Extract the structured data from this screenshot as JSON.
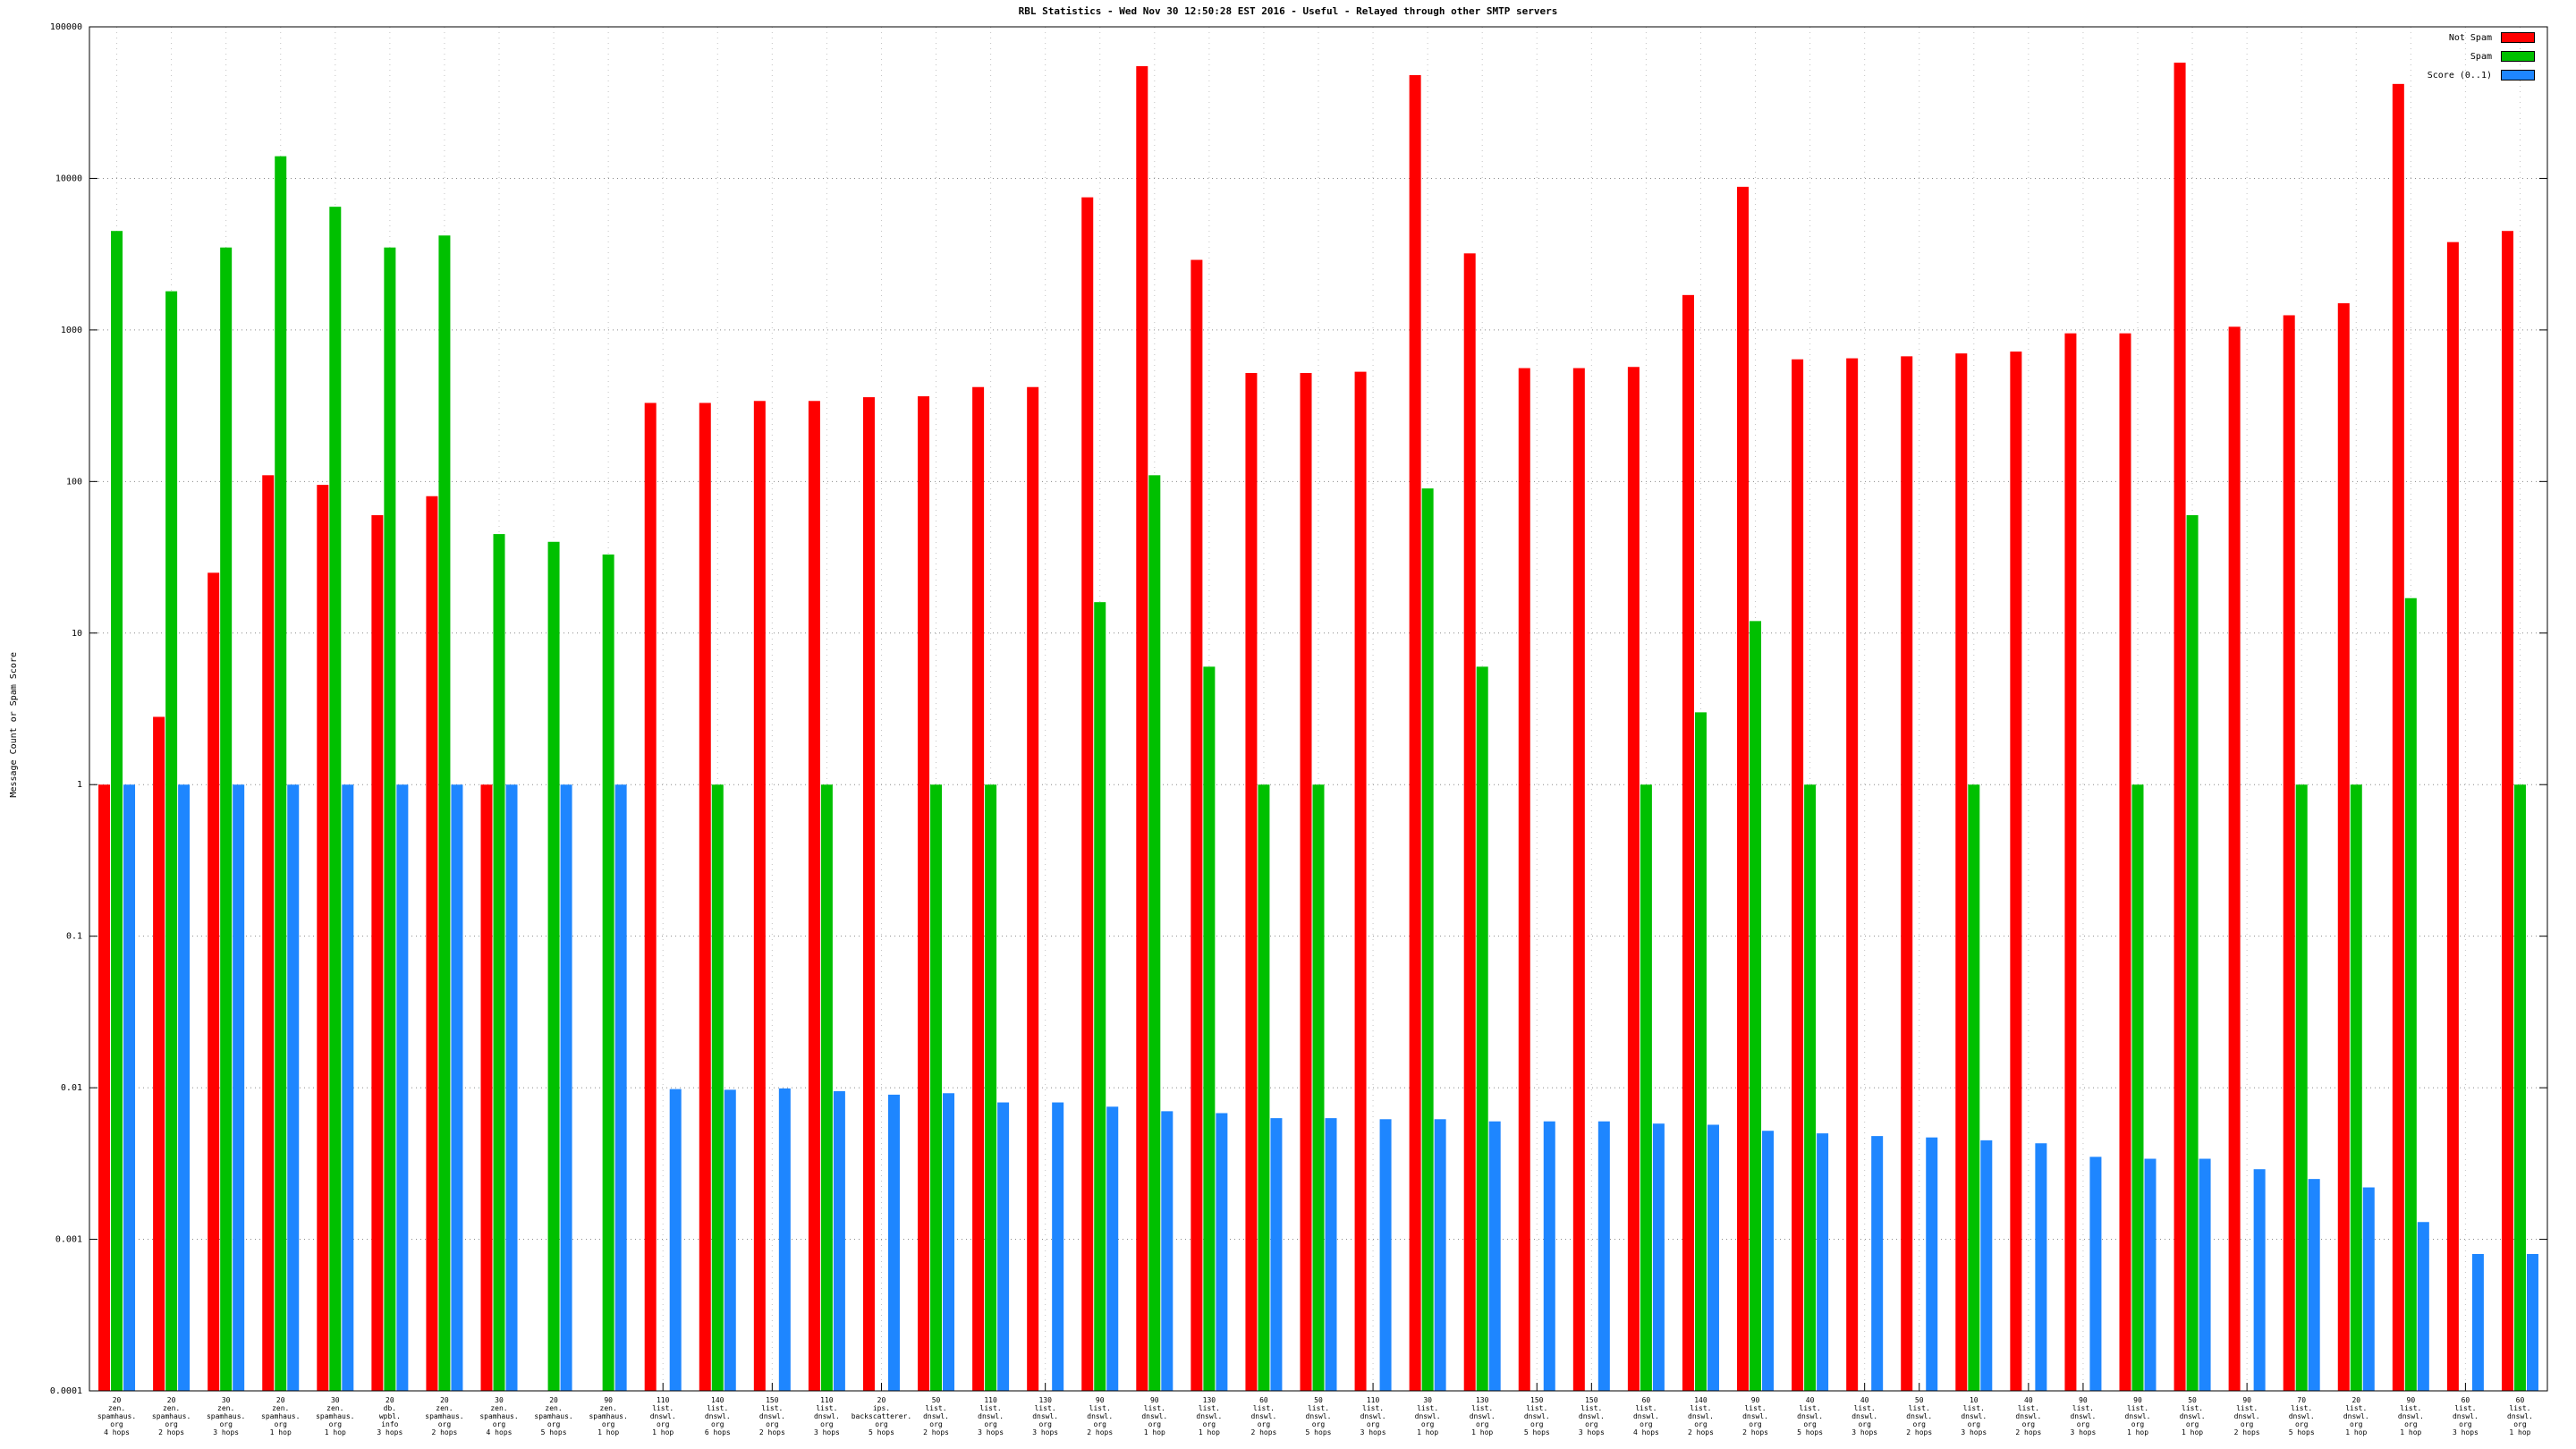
{
  "chart_data": {
    "type": "bar",
    "title": "RBL Statistics - Wed Nov 30 12:50:28 EST 2016 - Useful - Relayed through other SMTP servers",
    "ylabel": "Message Count or Spam Score",
    "xlabel": "",
    "y_scale": "log10",
    "ylim": [
      0.0001,
      100000
    ],
    "y_ticks": [
      "0.0001",
      "0.001",
      "0.01",
      "0.1",
      "1",
      "10",
      "100",
      "1000",
      "10000",
      "100000"
    ],
    "grid": "dotted",
    "legend_position": "top-right",
    "series": [
      {
        "name": "Not Spam",
        "key": "not-spam",
        "color": "#ff0000",
        "values": [
          1,
          2.8,
          25,
          110,
          95,
          60,
          80,
          1,
          null,
          null,
          330,
          330,
          340,
          340,
          360,
          365,
          420,
          420,
          7500,
          55000,
          2900,
          520,
          520,
          530,
          48000,
          3200,
          560,
          560,
          570,
          1700,
          8800,
          640,
          650,
          670,
          700,
          720,
          950,
          950,
          58000,
          1050,
          1250,
          1500,
          42000,
          3800,
          4500
        ]
      },
      {
        "name": "Spam",
        "key": "spam",
        "color": "#00c000",
        "values": [
          4500,
          1800,
          3500,
          14000,
          6500,
          3500,
          4200,
          45,
          40,
          33,
          null,
          1,
          null,
          1,
          null,
          1,
          1,
          null,
          16,
          110,
          6,
          1,
          1,
          null,
          90,
          6,
          null,
          null,
          1,
          3,
          12,
          1,
          null,
          null,
          1,
          null,
          null,
          1,
          60,
          null,
          1,
          1,
          17,
          null,
          1
        ]
      },
      {
        "name": "Score (0..1)",
        "key": "score",
        "color": "#1e86ff",
        "values": [
          1,
          1,
          1,
          1,
          1,
          1,
          1,
          1,
          1,
          1,
          0.0098,
          0.0097,
          0.0099,
          0.0095,
          0.009,
          0.0092,
          0.008,
          0.008,
          0.0075,
          0.007,
          0.0068,
          0.0063,
          0.0063,
          0.0062,
          0.0062,
          0.006,
          0.006,
          0.006,
          0.0058,
          0.0057,
          0.0052,
          0.005,
          0.0048,
          0.0047,
          0.0045,
          0.0043,
          0.0035,
          0.0034,
          0.0034,
          0.0029,
          0.0025,
          0.0022,
          0.0013,
          0.0008,
          0.0008
        ]
      }
    ],
    "categories": [
      [
        "20",
        "zen.",
        "spamhaus.",
        "org",
        "4 hops"
      ],
      [
        "20",
        "zen.",
        "spamhaus.",
        "org",
        "2 hops"
      ],
      [
        "30",
        "zen.",
        "spamhaus.",
        "org",
        "3 hops"
      ],
      [
        "20",
        "zen.",
        "spamhaus.",
        "org",
        "1 hop"
      ],
      [
        "30",
        "zen.",
        "spamhaus.",
        "org",
        "1 hop"
      ],
      [
        "20",
        "db.",
        "wpbl.",
        "info",
        "3 hops"
      ],
      [
        "20",
        "zen.",
        "spamhaus.",
        "org",
        "2 hops"
      ],
      [
        "30",
        "zen.",
        "spamhaus.",
        "org",
        "4 hops"
      ],
      [
        "20",
        "zen.",
        "spamhaus.",
        "org",
        "5 hops"
      ],
      [
        "90",
        "zen.",
        "spamhaus.",
        "org",
        "1 hop"
      ],
      [
        "110",
        "list.",
        "dnswl.",
        "org",
        "1 hop"
      ],
      [
        "140",
        "list.",
        "dnswl.",
        "org",
        "6 hops"
      ],
      [
        "150",
        "list.",
        "dnswl.",
        "org",
        "2 hops"
      ],
      [
        "110",
        "list.",
        "dnswl.",
        "org",
        "3 hops"
      ],
      [
        "20",
        "ips.",
        "backscatterer.",
        "org",
        "5 hops"
      ],
      [
        "50",
        "list.",
        "dnswl.",
        "org",
        "2 hops"
      ],
      [
        "110",
        "list.",
        "dnswl.",
        "org",
        "3 hops"
      ],
      [
        "130",
        "list.",
        "dnswl.",
        "org",
        "3 hops"
      ],
      [
        "90",
        "list.",
        "dnswl.",
        "org",
        "2 hops"
      ],
      [
        "90",
        "list.",
        "dnswl.",
        "org",
        "1 hop"
      ],
      [
        "130",
        "list.",
        "dnswl.",
        "org",
        "1 hop"
      ],
      [
        "60",
        "list.",
        "dnswl.",
        "org",
        "2 hops"
      ],
      [
        "50",
        "list.",
        "dnswl.",
        "org",
        "5 hops"
      ],
      [
        "110",
        "list.",
        "dnswl.",
        "org",
        "3 hops"
      ],
      [
        "30",
        "list.",
        "dnswl.",
        "org",
        "1 hop"
      ],
      [
        "130",
        "list.",
        "dnswl.",
        "org",
        "1 hop"
      ],
      [
        "150",
        "list.",
        "dnswl.",
        "org",
        "5 hops"
      ],
      [
        "150",
        "list.",
        "dnswl.",
        "org",
        "3 hops"
      ],
      [
        "60",
        "list.",
        "dnswl.",
        "org",
        "4 hops"
      ],
      [
        "140",
        "list.",
        "dnswl.",
        "org",
        "2 hops"
      ],
      [
        "90",
        "list.",
        "dnswl.",
        "org",
        "2 hops"
      ],
      [
        "40",
        "list.",
        "dnswl.",
        "org",
        "5 hops"
      ],
      [
        "40",
        "list.",
        "dnswl.",
        "org",
        "3 hops"
      ],
      [
        "50",
        "list.",
        "dnswl.",
        "org",
        "2 hops"
      ],
      [
        "10",
        "list.",
        "dnswl.",
        "org",
        "3 hops"
      ],
      [
        "40",
        "list.",
        "dnswl.",
        "org",
        "2 hops"
      ],
      [
        "90",
        "list.",
        "dnswl.",
        "org",
        "3 hops"
      ],
      [
        "90",
        "list.",
        "dnswl.",
        "org",
        "1 hop"
      ],
      [
        "50",
        "list.",
        "dnswl.",
        "org",
        "1 hop"
      ],
      [
        "90",
        "list.",
        "dnswl.",
        "org",
        "2 hops"
      ],
      [
        "70",
        "list.",
        "dnswl.",
        "org",
        "5 hops"
      ],
      [
        "20",
        "list.",
        "dnswl.",
        "org",
        "1 hop"
      ],
      [
        "90",
        "list.",
        "dnswl.",
        "org",
        "1 hop"
      ],
      [
        "60",
        "list.",
        "dnswl.",
        "org",
        "3 hops"
      ],
      [
        "60",
        "list.",
        "dnswl.",
        "org",
        "1 hop"
      ]
    ]
  }
}
